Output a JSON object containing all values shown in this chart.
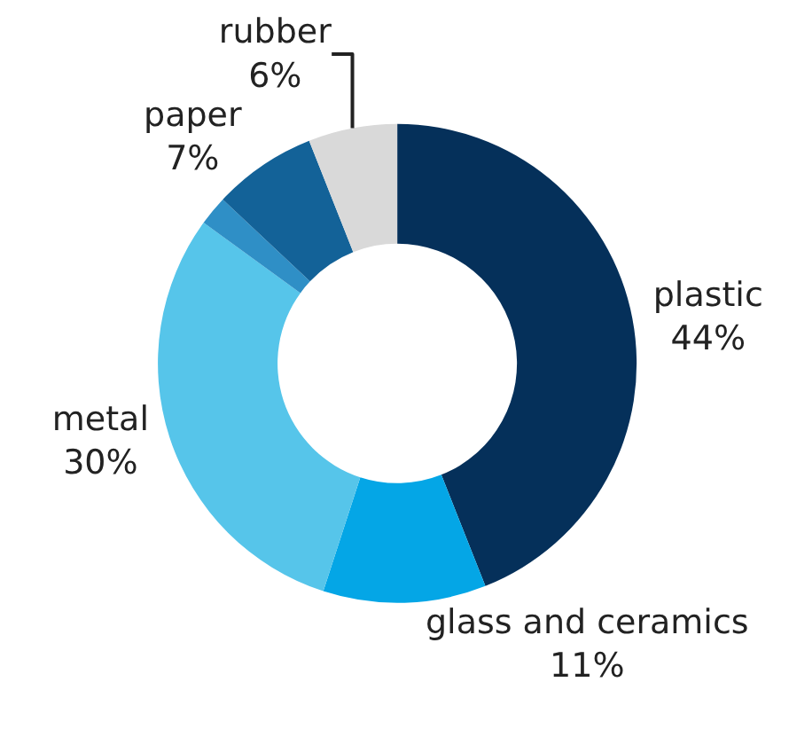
{
  "chart_data": {
    "type": "donut",
    "categories": [
      "plastic",
      "glass and ceramics",
      "metal",
      null,
      "paper",
      "rubber"
    ],
    "values": [
      44,
      11,
      30,
      2,
      7,
      6
    ],
    "value_labels": [
      "44%",
      "11%",
      "30%",
      null,
      "7%",
      "6%"
    ],
    "colors": [
      "#05305a",
      "#04a6e6",
      "#56c5ea",
      "#2f8fc6",
      "#136298",
      "#d9d9d9"
    ],
    "legend": false
  }
}
